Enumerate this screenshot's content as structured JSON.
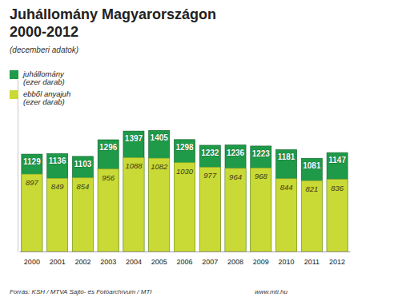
{
  "chart_data": {
    "type": "bar",
    "title": "Juhállomány Magyarországon 2000-2012",
    "subtitle": "(decemberi adatok)",
    "categories": [
      "2000",
      "2001",
      "2002",
      "2003",
      "2004",
      "2005",
      "2006",
      "2007",
      "2008",
      "2009",
      "2010",
      "2011",
      "2012"
    ],
    "series": [
      {
        "name": "juhállomány (ezer darab)",
        "color": "#1e9a48",
        "values": [
          1129,
          1136,
          1103,
          1296,
          1397,
          1405,
          1298,
          1232,
          1236,
          1223,
          1181,
          1081,
          1147
        ]
      },
      {
        "name": "ebből anyajuh (ezer darab)",
        "color": "#c9d935",
        "values": [
          897,
          849,
          854,
          956,
          1088,
          1082,
          1030,
          977,
          964,
          968,
          844,
          821,
          836
        ]
      }
    ],
    "stacked": false,
    "data_labels": true,
    "tick_labels": "x",
    "ylim": [
      0,
      2000
    ],
    "yticks": [],
    "legend": "top-left",
    "annotations": [
      "Forrás: KSH / MTVA Sajtó- és Fotóarchívum / MTI",
      "www.mti.hu"
    ]
  }
}
